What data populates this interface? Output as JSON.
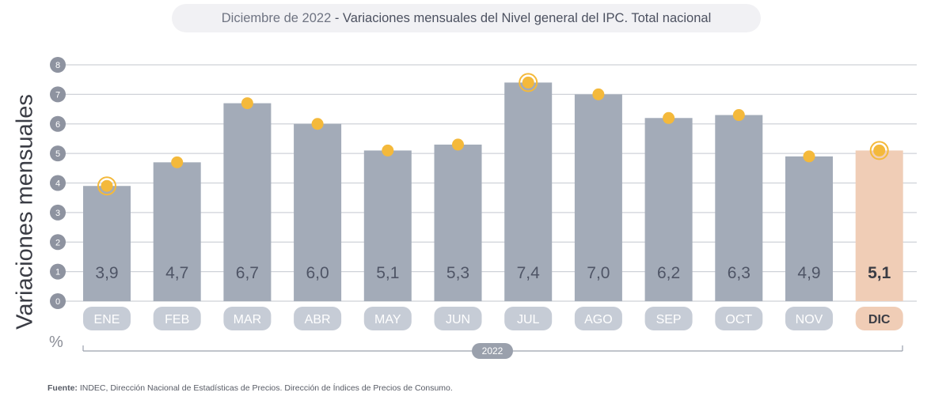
{
  "title": {
    "date": "Diciembre de 2022",
    "separator": " - ",
    "text": "Variaciones mensuales del Nivel general del IPC. Total nacional"
  },
  "ylabel": "Variaciones mensuales",
  "unit": "%",
  "year": "2022",
  "source": {
    "label": "Fuente:",
    "text": " INDEC, Dirección Nacional de Estadísticas de Precios. Dirección de Índices de Precios de Consumo."
  },
  "colors": {
    "bar": "#a3abb8",
    "bar_highlight": "#f0cdb6",
    "dot": "#f4b93b",
    "grid": "#cfd2d8",
    "axis_circle": "#8e93a0",
    "month_pill": "#c6ccd6",
    "month_pill_highlight": "#f0cdb6"
  },
  "chart_data": {
    "type": "bar",
    "categories": [
      "ENE",
      "FEB",
      "MAR",
      "ABR",
      "MAY",
      "JUN",
      "JUL",
      "AGO",
      "SEP",
      "OCT",
      "NOV",
      "DIC"
    ],
    "values": [
      3.9,
      4.7,
      6.7,
      6.0,
      5.1,
      5.3,
      7.4,
      7.0,
      6.2,
      6.3,
      4.9,
      5.1
    ],
    "value_labels": [
      "3,9",
      "4,7",
      "6,7",
      "6,0",
      "5,1",
      "5,3",
      "7,4",
      "7,0",
      "6,2",
      "6,3",
      "4,9",
      "5,1"
    ],
    "highlight_index": 11,
    "ring_indices": [
      0,
      6,
      11
    ],
    "ylim": [
      0,
      8
    ],
    "yticks": [
      0,
      1,
      2,
      3,
      4,
      5,
      6,
      7,
      8
    ],
    "grid": true
  }
}
